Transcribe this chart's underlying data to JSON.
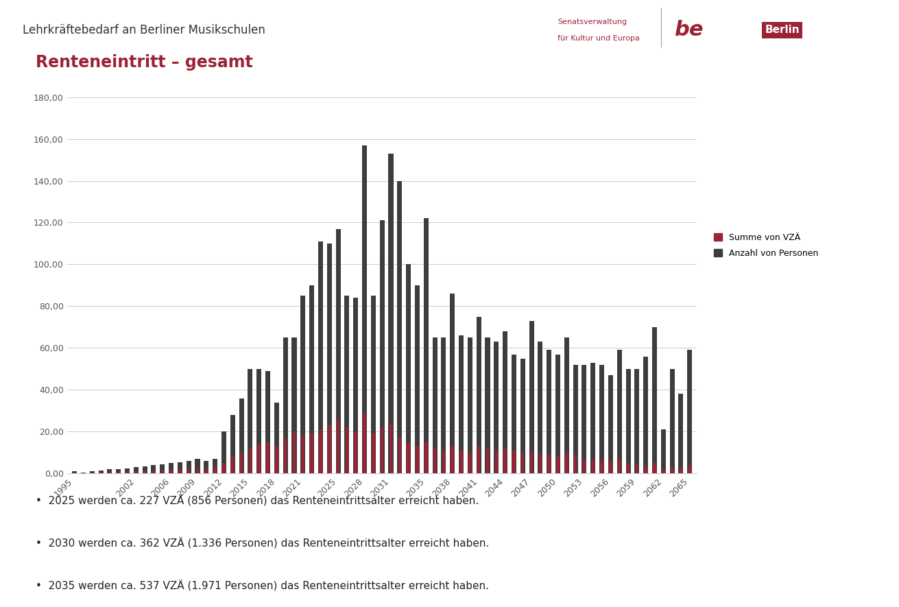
{
  "title": "Renteneintritt – gesamt",
  "header": "Lehrkräftebedarf an Berliner Musikschulen",
  "legend_vzae": "Summe von VZÄ",
  "legend_persons": "Anzahl von Personen",
  "color_vzae": "#9B2335",
  "color_persons": "#3D3D3D",
  "background": "#FFFFFF",
  "ylim": [
    0,
    180
  ],
  "yticks": [
    0,
    20,
    40,
    60,
    80,
    100,
    120,
    140,
    160,
    180
  ],
  "years": [
    1995,
    1996,
    1997,
    1998,
    1999,
    2000,
    2001,
    2002,
    2003,
    2004,
    2005,
    2006,
    2007,
    2008,
    2009,
    2010,
    2011,
    2012,
    2013,
    2014,
    2015,
    2016,
    2017,
    2018,
    2019,
    2020,
    2021,
    2022,
    2023,
    2024,
    2025,
    2026,
    2027,
    2028,
    2029,
    2030,
    2031,
    2032,
    2033,
    2034,
    2035,
    2036,
    2037,
    2038,
    2039,
    2040,
    2041,
    2042,
    2043,
    2044,
    2045,
    2046,
    2047,
    2048,
    2049,
    2050,
    2051,
    2052,
    2053,
    2054,
    2055,
    2056,
    2057,
    2058,
    2059,
    2060,
    2061,
    2062,
    2063,
    2064,
    2065
  ],
  "vzae": [
    0.3,
    0.2,
    0.3,
    0.5,
    0.6,
    0.7,
    1.0,
    1.2,
    1.3,
    1.5,
    1.7,
    1.8,
    2.0,
    2.2,
    2.5,
    2.2,
    3.0,
    5.0,
    8.0,
    10.0,
    12.0,
    14.0,
    15.0,
    13.0,
    17.0,
    20.0,
    18.0,
    19.0,
    21.0,
    23.0,
    26.0,
    22.0,
    20.0,
    29.0,
    19.0,
    22.0,
    24.0,
    17.0,
    15.0,
    13.0,
    15.0,
    12.0,
    11.0,
    13.0,
    11.0,
    10.0,
    13.0,
    12.0,
    11.0,
    12.0,
    11.0,
    10.0,
    11.0,
    9.0,
    9.0,
    8.0,
    10.0,
    9.0,
    7.0,
    7.0,
    6.0,
    6.0,
    7.0,
    5.0,
    4.0,
    3.0,
    5.0,
    2.0,
    3.0,
    3.0,
    4.0
  ],
  "persons": [
    1.0,
    0.5,
    1.0,
    1.5,
    2.0,
    2.0,
    2.5,
    3.0,
    3.5,
    4.0,
    4.5,
    5.0,
    5.5,
    6.0,
    7.0,
    6.0,
    7.0,
    20.0,
    28.0,
    36.0,
    50.0,
    50.0,
    49.0,
    34.0,
    65.0,
    65.0,
    85.0,
    90.0,
    111.0,
    110.0,
    117.0,
    85.0,
    84.0,
    157.0,
    85.0,
    121.0,
    153.0,
    140.0,
    100.0,
    90.0,
    122.0,
    65.0,
    65.0,
    86.0,
    66.0,
    65.0,
    75.0,
    65.0,
    63.0,
    68.0,
    57.0,
    55.0,
    73.0,
    63.0,
    59.0,
    57.0,
    65.0,
    52.0,
    52.0,
    53.0,
    52.0,
    47.0,
    59.0,
    50.0,
    50.0,
    56.0,
    70.0,
    21.0,
    50.0,
    38.0,
    59.0
  ],
  "xtick_years": [
    1995,
    2002,
    2006,
    2009,
    2012,
    2015,
    2018,
    2021,
    2025,
    2028,
    2031,
    2035,
    2038,
    2041,
    2044,
    2047,
    2050,
    2053,
    2056,
    2059,
    2062,
    2065
  ],
  "bullet1": "2025 werden ca. 227 VZÄ (856 Personen) das Renteneintrittsalter erreicht haben.",
  "bullet2": "2030 werden ca. 362 VZÄ (1.336 Personen) das Renteneintrittsalter erreicht haben.",
  "bullet3": "2035 werden ca. 537 VZÄ (1.971 Personen) das Renteneintrittsalter erreicht haben.",
  "header_line_color": "#9B2335",
  "title_color": "#9B2335",
  "logo_text1": "Senatsverwaltung",
  "logo_text2": "für Kultur und Europa",
  "logo_be": "be",
  "logo_berlin": "Berlin"
}
